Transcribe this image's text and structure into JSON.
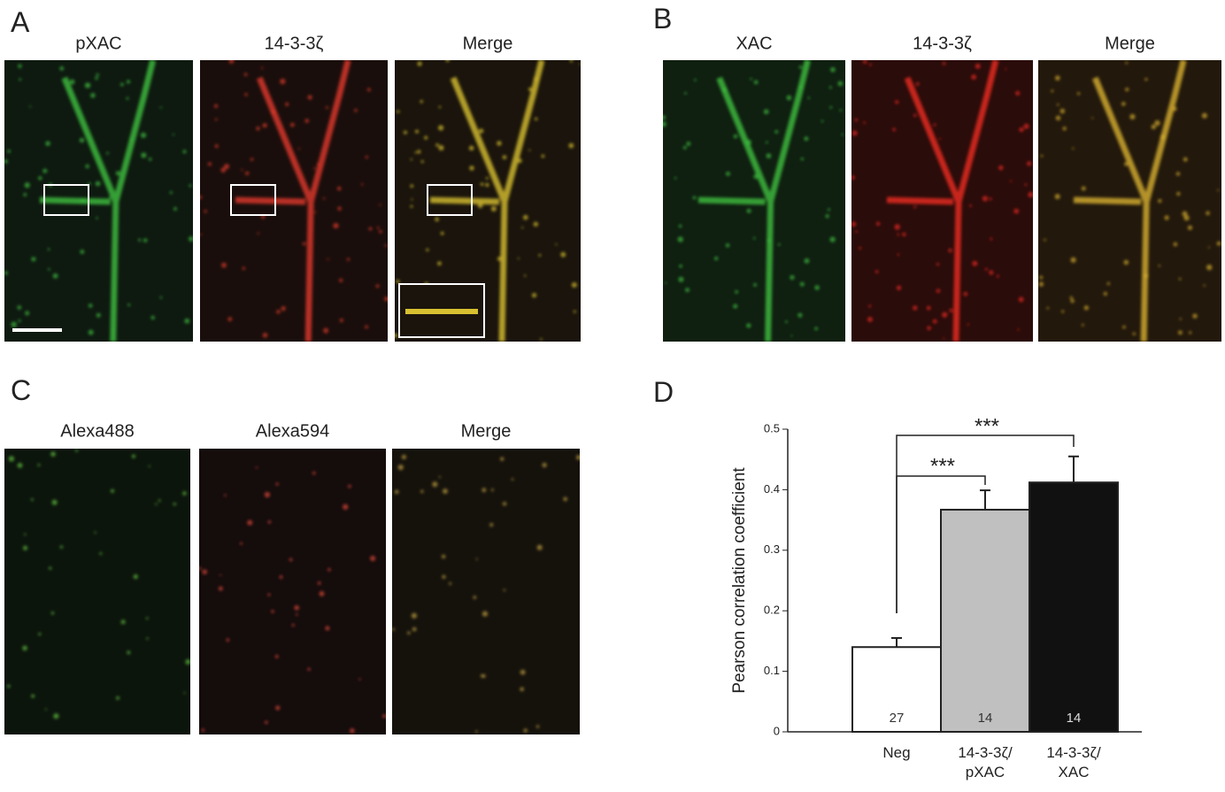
{
  "panels": {
    "A": {
      "label": "A",
      "titles": [
        "pXAC",
        "14-3-3ζ",
        "Merge"
      ]
    },
    "B": {
      "label": "B",
      "titles": [
        "XAC",
        "14-3-3ζ",
        "Merge"
      ]
    },
    "C": {
      "label": "C",
      "titles": [
        "Alexa488",
        "Alexa594",
        "Merge"
      ]
    }
  },
  "chart_data": {
    "type": "bar",
    "label": "D",
    "ylabel": "Pearson correlation coefficient",
    "categories": [
      "Neg",
      "14-3-3ζ/ pXAC",
      "14-3-3ζ/ XAC"
    ],
    "values": [
      0.14,
      0.367,
      0.412
    ],
    "errors": [
      0.015,
      0.032,
      0.043
    ],
    "counts": [
      27,
      14,
      14
    ],
    "colors": [
      "#ffffff",
      "#c0c0c0",
      "#111111"
    ],
    "annotations": [
      "***",
      "***"
    ],
    "ylim": [
      0,
      0.5
    ],
    "yticks": [
      0,
      0.1,
      0.2,
      0.3,
      0.4,
      0.5
    ]
  }
}
